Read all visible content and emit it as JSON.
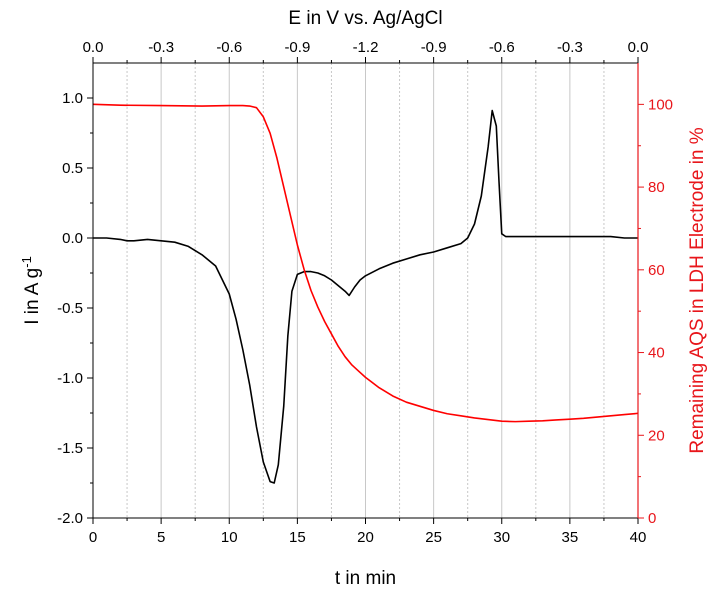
{
  "chart_data": {
    "type": "line",
    "title": "",
    "colors": {
      "current": "#000000",
      "remaining": "#ff0000",
      "right_axis": "#e8161b",
      "grid": "#c8c8c8"
    },
    "x_axis": {
      "label": "t in min",
      "range": [
        0,
        40
      ],
      "ticks": [
        0,
        5,
        10,
        15,
        20,
        25,
        30,
        35,
        40
      ],
      "tick_labels": [
        "0",
        "5",
        "10",
        "15",
        "20",
        "25",
        "30",
        "35",
        "40"
      ]
    },
    "top_axis": {
      "label": "E in V vs. Ag/AgCl",
      "ticks_t": [
        0,
        5,
        10,
        15,
        20,
        25,
        30,
        35,
        40
      ],
      "tick_labels": [
        "0.0",
        "-0.3",
        "-0.6",
        "-0.9",
        "-1.2",
        "-0.9",
        "-0.6",
        "-0.3",
        "0.0"
      ]
    },
    "y_left": {
      "label": "I in A g",
      "label_sup": "-1",
      "range": [
        -2.0,
        1.25
      ],
      "ticks": [
        -2.0,
        -1.5,
        -1.0,
        -0.5,
        0.0,
        0.5,
        1.0
      ],
      "tick_labels": [
        "-2.0",
        "-1.5",
        "-1.0",
        "-0.5",
        "0.0",
        "0.5",
        "1.0"
      ]
    },
    "y_right": {
      "label": "Remaining AQS in LDH Electrode in %",
      "range": [
        0,
        110
      ],
      "ticks": [
        0,
        20,
        40,
        60,
        80,
        100
      ],
      "tick_labels": [
        "0",
        "20",
        "40",
        "60",
        "80",
        "100"
      ]
    },
    "grid": {
      "solid_t": [
        5,
        10,
        15,
        20,
        25,
        30,
        35
      ],
      "dashed_t": [
        2.5,
        7.5,
        12.5,
        17.5,
        22.5,
        27.5,
        32.5,
        37.5
      ]
    },
    "series": [
      {
        "axis": "left",
        "x": [
          0,
          1,
          2,
          2.5,
          3,
          4,
          5,
          6,
          7,
          8,
          9,
          10,
          10.5,
          11,
          11.5,
          12,
          12.5,
          13,
          13.3,
          13.6,
          14,
          14.3,
          14.6,
          15,
          15.5,
          16,
          16.5,
          17,
          17.5,
          18,
          18.5,
          18.8,
          19.2,
          19.6,
          20,
          21,
          22,
          23,
          24,
          25,
          26,
          27,
          27.5,
          28,
          28.5,
          29,
          29.3,
          29.6,
          29.8,
          30,
          30.3,
          31,
          32,
          33,
          34,
          35,
          36,
          37,
          38,
          39,
          40
        ],
        "y": [
          0.0,
          0.0,
          -0.01,
          -0.02,
          -0.02,
          -0.01,
          -0.02,
          -0.03,
          -0.06,
          -0.12,
          -0.2,
          -0.4,
          -0.58,
          -0.8,
          -1.05,
          -1.35,
          -1.6,
          -1.74,
          -1.75,
          -1.62,
          -1.2,
          -0.7,
          -0.38,
          -0.26,
          -0.24,
          -0.24,
          -0.25,
          -0.27,
          -0.3,
          -0.34,
          -0.38,
          -0.41,
          -0.35,
          -0.3,
          -0.27,
          -0.22,
          -0.18,
          -0.15,
          -0.12,
          -0.1,
          -0.07,
          -0.04,
          0.0,
          0.1,
          0.3,
          0.65,
          0.91,
          0.8,
          0.4,
          0.03,
          0.01,
          0.01,
          0.01,
          0.01,
          0.01,
          0.01,
          0.01,
          0.01,
          0.01,
          0.0,
          0.0
        ]
      },
      {
        "axis": "right",
        "x": [
          0,
          2,
          5,
          8,
          10,
          11,
          11.5,
          12,
          12.5,
          13,
          13.5,
          14,
          14.5,
          15,
          15.5,
          16,
          16.5,
          17,
          17.5,
          18,
          18.5,
          19,
          19.5,
          20,
          21,
          22,
          23,
          24,
          25,
          26,
          27,
          28,
          29,
          30,
          31,
          32,
          33,
          34,
          35,
          36,
          37,
          38,
          39,
          40
        ],
        "y": [
          100,
          99.8,
          99.7,
          99.6,
          99.7,
          99.7,
          99.6,
          99.2,
          97,
          93,
          87,
          80,
          73,
          66,
          60,
          55,
          51,
          47.5,
          44.5,
          41.5,
          39,
          37,
          35.5,
          34,
          31.5,
          29.5,
          28,
          27,
          26,
          25.2,
          24.7,
          24.2,
          23.8,
          23.4,
          23.3,
          23.4,
          23.5,
          23.7,
          23.9,
          24.1,
          24.4,
          24.7,
          25,
          25.3
        ]
      }
    ]
  }
}
